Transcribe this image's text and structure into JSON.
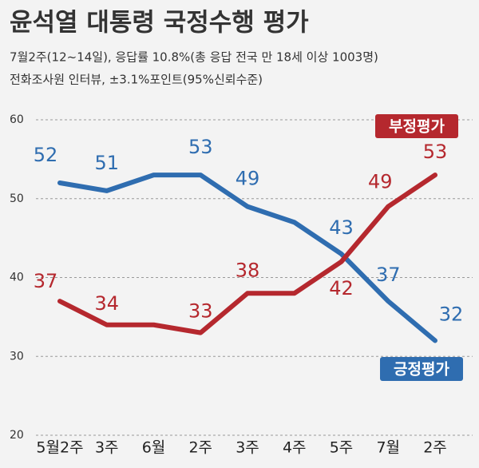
{
  "chart_data": {
    "type": "line",
    "title": "윤석열 대통령 국정수행 평가",
    "subtitle": [
      "7월2주(12~14일), 응답률 10.8%(총 응답 전국 만 18세 이상 1003명)",
      "전화조사원 인터뷰, ±3.1%포인트(95%신뢰수준)"
    ],
    "categories": [
      "5월2주",
      "3주",
      "6월",
      "2주",
      "3주",
      "4주",
      "5주",
      "7월",
      "2주"
    ],
    "series": [
      {
        "name": "긍정평가",
        "color": "#2f6db0",
        "values": [
          52,
          51,
          53,
          53,
          49,
          47,
          43,
          37,
          32
        ],
        "value_labels": [
          52,
          51,
          null,
          53,
          49,
          null,
          43,
          37,
          32
        ]
      },
      {
        "name": "부정평가",
        "color": "#b5282e",
        "values": [
          37,
          34,
          34,
          33,
          38,
          38,
          42,
          49,
          53
        ],
        "value_labels": [
          37,
          34,
          null,
          33,
          38,
          null,
          42,
          49,
          53
        ]
      }
    ],
    "ylim": [
      20,
      60
    ],
    "yticks": [
      20,
      30,
      40,
      50,
      60
    ],
    "grid": true
  }
}
